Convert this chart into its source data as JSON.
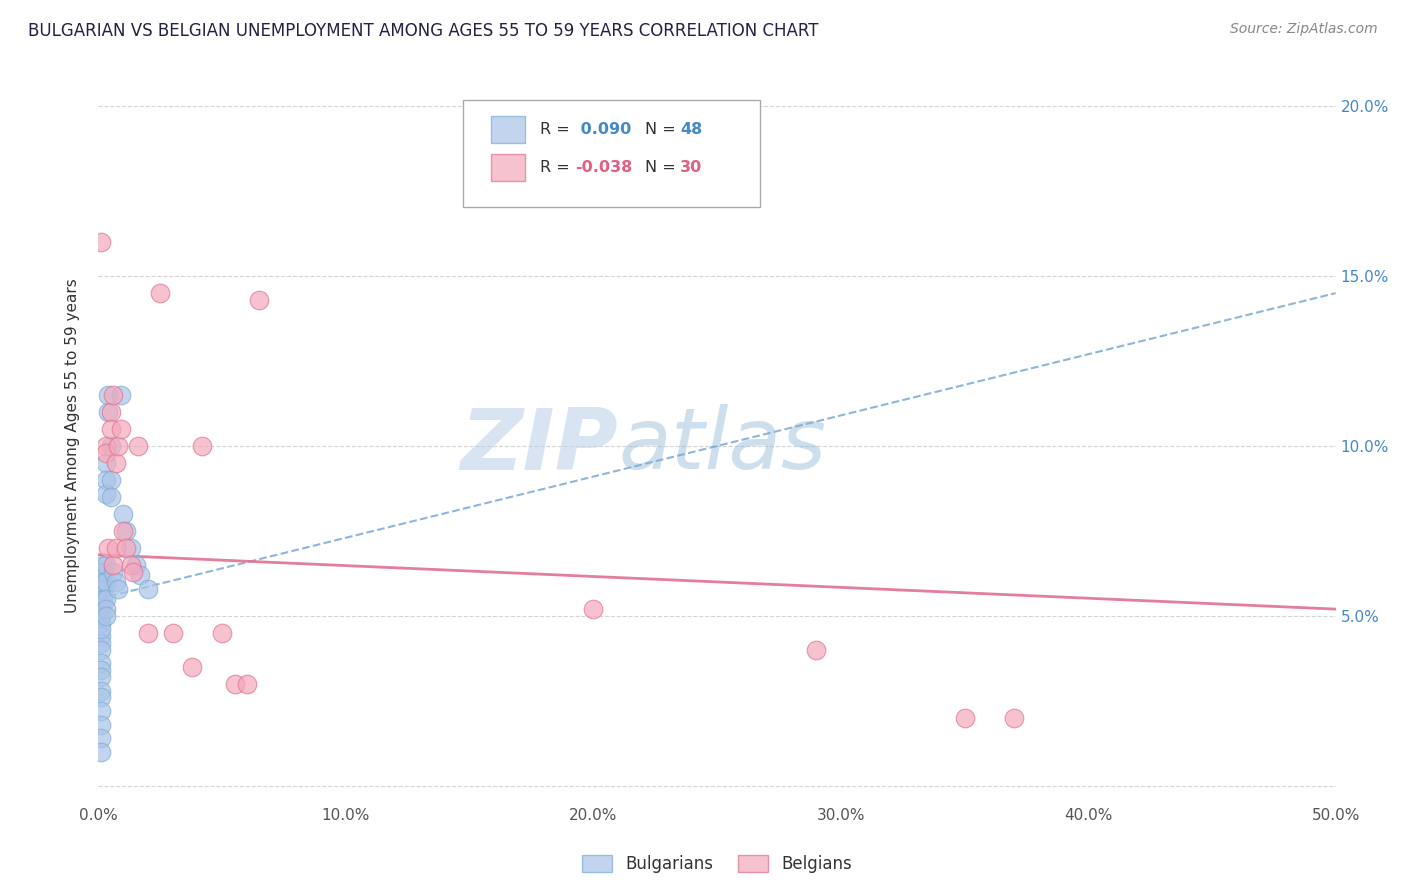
{
  "title": "BULGARIAN VS BELGIAN UNEMPLOYMENT AMONG AGES 55 TO 59 YEARS CORRELATION CHART",
  "source": "Source: ZipAtlas.com",
  "ylabel": "Unemployment Among Ages 55 to 59 years",
  "xlim": [
    0.0,
    0.5
  ],
  "ylim": [
    -0.005,
    0.205
  ],
  "xticks": [
    0.0,
    0.1,
    0.2,
    0.3,
    0.4,
    0.5
  ],
  "yticks": [
    0.0,
    0.05,
    0.1,
    0.15,
    0.2
  ],
  "xtick_labels": [
    "0.0%",
    "10.0%",
    "20.0%",
    "30.0%",
    "40.0%",
    "50.0%"
  ],
  "ytick_labels": [
    "",
    "5.0%",
    "10.0%",
    "15.0%",
    "20.0%"
  ],
  "bg_color": "#ffffff",
  "grid_color": "#d0d0d0",
  "watermark_zip": "ZIP",
  "watermark_atlas": "atlas",
  "blue_color": "#aac4e8",
  "blue_edge_color": "#7baad4",
  "pink_color": "#f4a8bc",
  "pink_edge_color": "#e07090",
  "blue_line_color": "#7baad4",
  "pink_line_color": "#e07090",
  "right_axis_color": "#4488cc",
  "blue_scatter": [
    [
      0.001,
      0.063
    ],
    [
      0.001,
      0.059
    ],
    [
      0.001,
      0.055
    ],
    [
      0.001,
      0.052
    ],
    [
      0.001,
      0.05
    ],
    [
      0.001,
      0.048
    ],
    [
      0.001,
      0.044
    ],
    [
      0.001,
      0.042
    ],
    [
      0.001,
      0.04
    ],
    [
      0.001,
      0.036
    ],
    [
      0.001,
      0.034
    ],
    [
      0.001,
      0.032
    ],
    [
      0.001,
      0.028
    ],
    [
      0.001,
      0.026
    ],
    [
      0.001,
      0.022
    ],
    [
      0.001,
      0.018
    ],
    [
      0.001,
      0.014
    ],
    [
      0.001,
      0.01
    ],
    [
      0.001,
      0.058
    ],
    [
      0.001,
      0.046
    ],
    [
      0.002,
      0.065
    ],
    [
      0.002,
      0.063
    ],
    [
      0.002,
      0.06
    ],
    [
      0.002,
      0.058
    ],
    [
      0.002,
      0.055
    ],
    [
      0.003,
      0.095
    ],
    [
      0.003,
      0.09
    ],
    [
      0.003,
      0.086
    ],
    [
      0.003,
      0.065
    ],
    [
      0.003,
      0.06
    ],
    [
      0.003,
      0.055
    ],
    [
      0.003,
      0.052
    ],
    [
      0.003,
      0.05
    ],
    [
      0.004,
      0.115
    ],
    [
      0.004,
      0.11
    ],
    [
      0.005,
      0.1
    ],
    [
      0.005,
      0.09
    ],
    [
      0.005,
      0.085
    ],
    [
      0.006,
      0.063
    ],
    [
      0.007,
      0.06
    ],
    [
      0.008,
      0.058
    ],
    [
      0.009,
      0.115
    ],
    [
      0.01,
      0.08
    ],
    [
      0.011,
      0.075
    ],
    [
      0.013,
      0.07
    ],
    [
      0.015,
      0.065
    ],
    [
      0.017,
      0.062
    ],
    [
      0.02,
      0.058
    ]
  ],
  "pink_scatter": [
    [
      0.001,
      0.16
    ],
    [
      0.003,
      0.1
    ],
    [
      0.003,
      0.098
    ],
    [
      0.004,
      0.07
    ],
    [
      0.005,
      0.11
    ],
    [
      0.005,
      0.105
    ],
    [
      0.006,
      0.115
    ],
    [
      0.006,
      0.065
    ],
    [
      0.007,
      0.095
    ],
    [
      0.007,
      0.07
    ],
    [
      0.008,
      0.1
    ],
    [
      0.009,
      0.105
    ],
    [
      0.01,
      0.075
    ],
    [
      0.011,
      0.07
    ],
    [
      0.013,
      0.065
    ],
    [
      0.014,
      0.063
    ],
    [
      0.016,
      0.1
    ],
    [
      0.02,
      0.045
    ],
    [
      0.025,
      0.145
    ],
    [
      0.03,
      0.045
    ],
    [
      0.038,
      0.035
    ],
    [
      0.042,
      0.1
    ],
    [
      0.05,
      0.045
    ],
    [
      0.055,
      0.03
    ],
    [
      0.06,
      0.03
    ],
    [
      0.065,
      0.143
    ],
    [
      0.2,
      0.052
    ],
    [
      0.29,
      0.04
    ],
    [
      0.35,
      0.02
    ],
    [
      0.37,
      0.02
    ]
  ],
  "blue_trend_x": [
    0.0,
    0.5
  ],
  "blue_trend_y": [
    0.055,
    0.145
  ],
  "pink_trend_x": [
    0.0,
    0.5
  ],
  "pink_trend_y": [
    0.068,
    0.052
  ]
}
